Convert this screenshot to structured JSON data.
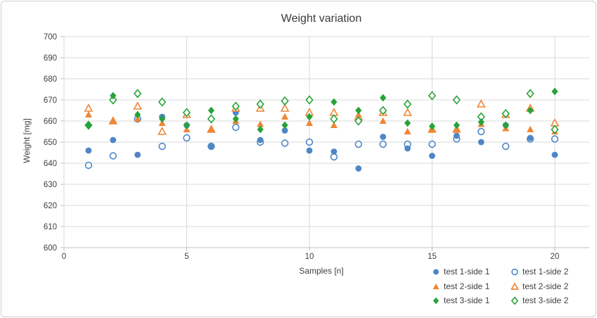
{
  "chart": {
    "title": "Weight variation",
    "x_axis_title": "Samples [n]",
    "y_axis_title": "Weight [mg]"
  },
  "chart_data": {
    "type": "scatter",
    "title": "Weight variation",
    "xlabel": "Samples [n]",
    "ylabel": "Weight [mg]",
    "xlim": [
      0,
      20
    ],
    "ylim": [
      600,
      700
    ],
    "x_ticks": [
      0,
      5,
      10,
      15,
      20
    ],
    "y_ticks": [
      600,
      610,
      620,
      630,
      640,
      650,
      660,
      670,
      680,
      690,
      700
    ],
    "grid": true,
    "legend_position": "bottom-right",
    "colors": {
      "blue": "#4F86C6",
      "orange": "#EF8636",
      "green": "#27A339",
      "gridline": "#D9D9D9",
      "axis": "#BFBFBF",
      "text": "#404040"
    },
    "x": [
      1,
      2,
      3,
      4,
      5,
      6,
      7,
      8,
      9,
      10,
      11,
      12,
      13,
      14,
      15,
      16,
      17,
      18,
      19,
      20
    ],
    "series": [
      {
        "name": "test 1-side 1",
        "marker": "circle",
        "style": "filled",
        "color": "#4F86C6",
        "values": [
          646,
          651,
          644,
          662,
          658,
          648,
          664,
          651,
          655.5,
          646,
          645.5,
          637.5,
          652.5,
          647,
          643.5,
          653,
          650,
          658,
          652,
          644
        ]
      },
      {
        "name": "test 1-side 2",
        "marker": "circle",
        "style": "open",
        "color": "#4F86C6",
        "values": [
          639,
          643.5,
          661,
          648,
          652,
          648,
          657,
          650,
          649.5,
          650,
          643,
          649,
          649,
          649,
          649,
          651.5,
          655,
          648,
          651.5,
          651.5
        ]
      },
      {
        "name": "test 2-side 1",
        "marker": "triangle",
        "style": "filled",
        "color": "#EF8636",
        "values": [
          663,
          660,
          661,
          659,
          656,
          656,
          660,
          658.5,
          662,
          659,
          658,
          663,
          660,
          655,
          656,
          656,
          658.5,
          656.5,
          656,
          655
        ]
      },
      {
        "name": "test 2-side 2",
        "marker": "triangle",
        "style": "open",
        "color": "#EF8636",
        "values": [
          666,
          660,
          667,
          655,
          663,
          656,
          666,
          666,
          666,
          664,
          664,
          662,
          664,
          664,
          656,
          656,
          668,
          663,
          666,
          659
        ]
      },
      {
        "name": "test 3-side 1",
        "marker": "diamond",
        "style": "filled",
        "color": "#27A339",
        "values": [
          658,
          672,
          663,
          661,
          658,
          665,
          661,
          656,
          658,
          662,
          669,
          665,
          671,
          659,
          657.5,
          658,
          659.5,
          658,
          665,
          674
        ]
      },
      {
        "name": "test 3-side 2",
        "marker": "diamond",
        "style": "open",
        "color": "#27A339",
        "values": [
          658,
          670,
          673,
          669,
          664,
          661,
          667,
          668,
          669.5,
          670,
          661,
          660,
          665,
          668,
          672,
          670,
          662,
          663.5,
          673,
          656
        ]
      }
    ],
    "z_order": [
      1,
      0,
      3,
      2,
      5,
      4
    ]
  }
}
